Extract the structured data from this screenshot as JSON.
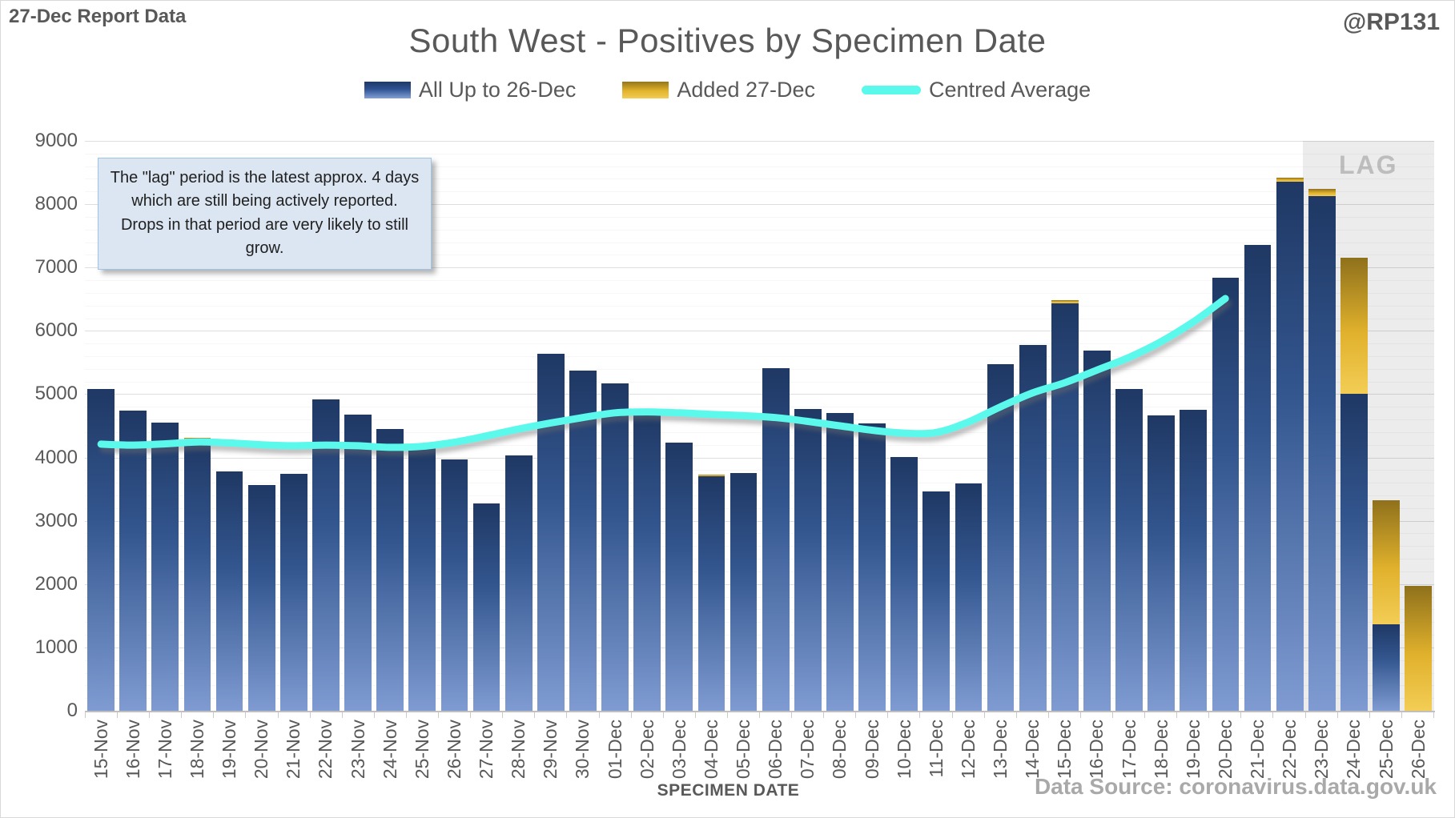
{
  "header": {
    "report_label": "27-Dec Report Data",
    "handle": "@RP131"
  },
  "annotation": {
    "text": "The \"lag\" period is the latest approx. 4 days which are still being actively reported. Drops in that period are very likely to still grow."
  },
  "footer": {
    "source": "Data Source: coronavirus.data.gov.uk"
  },
  "chart_data": {
    "type": "bar",
    "title": "South West - Positives by Specimen Date",
    "xlabel": "SPECIMEN DATE",
    "ylabel": "",
    "ylim": [
      0,
      9000
    ],
    "y_major_step": 1000,
    "y_minor_step": 200,
    "y_ticks": [
      "0",
      "1000",
      "2000",
      "3000",
      "4000",
      "5000",
      "6000",
      "7000",
      "8000",
      "9000"
    ],
    "grid": "major and minor horizontal gridlines",
    "legend_position": "top center",
    "categories": [
      "15-Nov",
      "16-Nov",
      "17-Nov",
      "18-Nov",
      "19-Nov",
      "20-Nov",
      "21-Nov",
      "22-Nov",
      "23-Nov",
      "24-Nov",
      "25-Nov",
      "26-Nov",
      "27-Nov",
      "28-Nov",
      "29-Nov",
      "30-Nov",
      "01-Dec",
      "02-Dec",
      "03-Dec",
      "04-Dec",
      "05-Dec",
      "06-Dec",
      "07-Dec",
      "08-Dec",
      "09-Dec",
      "10-Dec",
      "11-Dec",
      "12-Dec",
      "13-Dec",
      "14-Dec",
      "15-Dec",
      "16-Dec",
      "17-Dec",
      "18-Dec",
      "19-Dec",
      "20-Dec",
      "21-Dec",
      "22-Dec",
      "23-Dec",
      "24-Dec",
      "25-Dec",
      "26-Dec"
    ],
    "series": [
      {
        "name": "All Up to 26-Dec",
        "type": "bar",
        "color": "#2f5292",
        "values": [
          5080,
          4740,
          4545,
          4280,
          3780,
          3560,
          3740,
          4920,
          4680,
          4445,
          4185,
          3970,
          3280,
          4035,
          5640,
          5370,
          5170,
          4765,
          4240,
          3710,
          3760,
          5410,
          4765,
          4700,
          4540,
          4005,
          3470,
          3595,
          5470,
          5775,
          6440,
          5685,
          5080,
          4665,
          4750,
          6840,
          7360,
          8360,
          8130,
          5005,
          1360,
          0
        ]
      },
      {
        "name": "Added 27-Dec",
        "type": "bar-stacked",
        "color": "#e0b12c",
        "values": [
          0,
          0,
          0,
          30,
          0,
          0,
          0,
          0,
          0,
          0,
          0,
          0,
          0,
          0,
          0,
          0,
          0,
          0,
          0,
          25,
          0,
          0,
          0,
          0,
          0,
          0,
          0,
          0,
          0,
          0,
          50,
          0,
          0,
          0,
          0,
          0,
          0,
          60,
          110,
          2145,
          1965,
          1975
        ]
      },
      {
        "name": "Centred Average",
        "type": "line",
        "color": "#5bf8ec",
        "values": [
          4210,
          4195,
          4215,
          4245,
          4230,
          4200,
          4185,
          4195,
          4185,
          4160,
          4175,
          4240,
          4340,
          4450,
          4545,
          4630,
          4705,
          4720,
          4705,
          4680,
          4660,
          4630,
          4570,
          4500,
          4430,
          4385,
          4395,
          4560,
          4800,
          5020,
          5180,
          5380,
          5580,
          5830,
          6140,
          6510,
          null,
          null,
          null,
          null,
          null,
          null
        ]
      }
    ],
    "lag": {
      "label": "LAG",
      "start_category": "23-Dec",
      "span_categories": 4
    }
  }
}
